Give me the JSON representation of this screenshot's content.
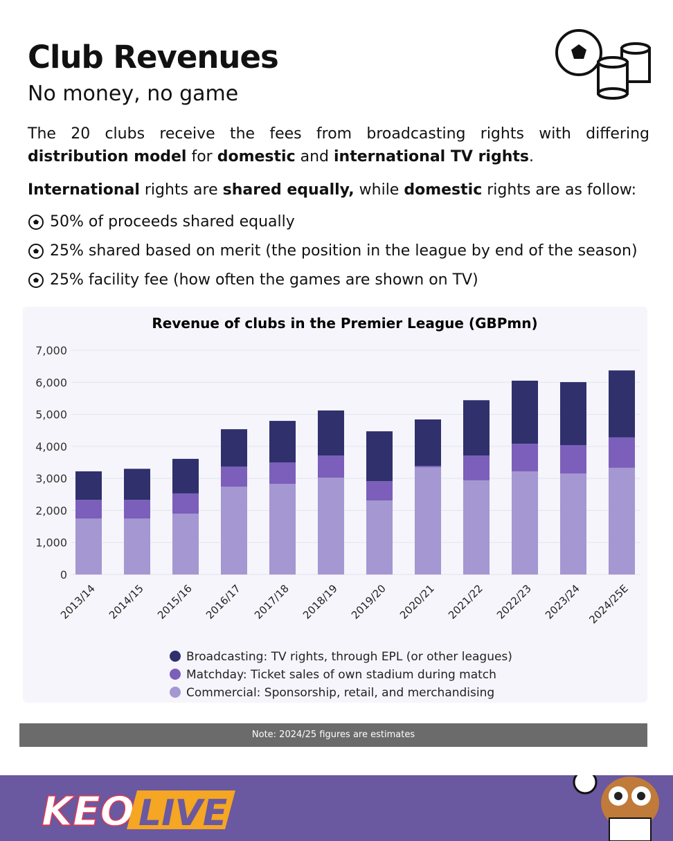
{
  "header": {
    "title": "Club Revenues",
    "subtitle": "No money, no game"
  },
  "intro": [
    "The 20 clubs receive the fees from broadcasting rights with differing",
    "distribution model",
    "for",
    "domestic",
    "and",
    "international TV rights",
    "."
  ],
  "rights": [
    "International",
    "rights are",
    "shared equally,",
    "while",
    "domestic",
    "rights are as follow:"
  ],
  "bullets": [
    "50% of proceeds shared equally",
    "25% shared based on merit (the position in the league by end of the season)",
    "25% facility fee (how often the games are shown on TV)"
  ],
  "chart_data": {
    "type": "bar",
    "stacked": true,
    "title": "Revenue of clubs in the Premier League (GBPmn)",
    "categories": [
      "2013/14",
      "2014/15",
      "2015/16",
      "2016/17",
      "2017/18",
      "2018/19",
      "2019/20",
      "2020/21",
      "2021/22",
      "2022/23",
      "2023/24",
      "2024/25E"
    ],
    "series": [
      {
        "name": "Commercial: Sponsorship, retail, and merchandising",
        "color": "#a597d1",
        "values": [
          1750,
          1750,
          1900,
          2740,
          2830,
          3020,
          2310,
          3350,
          2940,
          3220,
          3150,
          3330
        ]
      },
      {
        "name": "Matchday: Ticket sales of own stadium during match",
        "color": "#7b5fba",
        "values": [
          580,
          580,
          630,
          630,
          670,
          695,
          605,
          40,
          775,
          860,
          890,
          950
        ]
      },
      {
        "name": "Broadcasting: TV rights, through EPL (or other leagues)",
        "color": "#2f306c",
        "values": [
          890,
          970,
          1080,
          1165,
          1295,
          1405,
          1555,
          1450,
          1725,
          1970,
          1965,
          2090
        ]
      }
    ],
    "ylim": [
      0,
      7000
    ],
    "yticks": [
      0,
      {
        "value": 1000,
        "label": "1,000"
      },
      {
        "value": 2000,
        "label": "2,000"
      },
      {
        "value": 3000,
        "label": "3,000"
      },
      {
        "value": 4000,
        "label": "4,000"
      },
      {
        "value": 5000,
        "label": "5,000"
      },
      {
        "value": 6000,
        "label": "6,000"
      },
      {
        "value": 7000,
        "label": "7,000"
      }
    ],
    "grid": true
  },
  "note": "Note: 2024/25 figures are estimates",
  "footer": {
    "logo": [
      "KEO",
      "LIVE"
    ]
  }
}
